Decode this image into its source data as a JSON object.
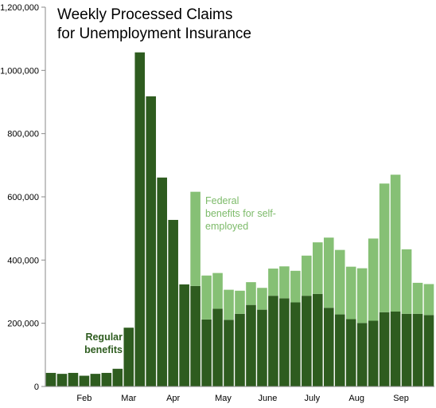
{
  "chart_data": {
    "type": "bar",
    "stacked": true,
    "title_lines": [
      "Weekly Processed Claims",
      "for Unemployment Insurance"
    ],
    "ylim": [
      0,
      1200000
    ],
    "yticks": [
      "0",
      "200,000",
      "400,000",
      "600,000",
      "800,000",
      "1,000,000",
      "1,200,000"
    ],
    "month_labels": [
      "Feb",
      "Mar",
      "Apr",
      "May",
      "June",
      "July",
      "Aug",
      "Sep"
    ],
    "month_label_weeks": [
      3,
      7,
      11,
      15.5,
      19.5,
      23.5,
      27.5,
      31.5
    ],
    "series": [
      {
        "key": "regular",
        "color": "#2e5c1f",
        "values": [
          43000,
          40000,
          43000,
          34000,
          40000,
          43000,
          56000,
          186000,
          1057000,
          918000,
          661000,
          527000,
          323000,
          318000,
          212000,
          246000,
          211000,
          230000,
          258000,
          243000,
          287000,
          279000,
          266000,
          287000,
          293000,
          249000,
          228000,
          213000,
          201000,
          208000,
          235000,
          237000,
          230000,
          230000,
          226000
        ]
      },
      {
        "key": "federal",
        "color": "#86c075",
        "values": [
          0,
          0,
          0,
          0,
          0,
          0,
          0,
          0,
          0,
          0,
          0,
          0,
          0,
          298000,
          139000,
          113000,
          95000,
          73000,
          72000,
          69000,
          86000,
          101000,
          100000,
          127000,
          163000,
          222000,
          204000,
          166000,
          173000,
          260000,
          407000,
          433000,
          204000,
          98000,
          98000
        ]
      }
    ],
    "annotations": [
      {
        "key": "regular",
        "lines": [
          "Regular",
          "benefits"
        ]
      },
      {
        "key": "federal",
        "lines": [
          "Federal",
          "benefits for self-",
          "employed"
        ]
      }
    ]
  }
}
